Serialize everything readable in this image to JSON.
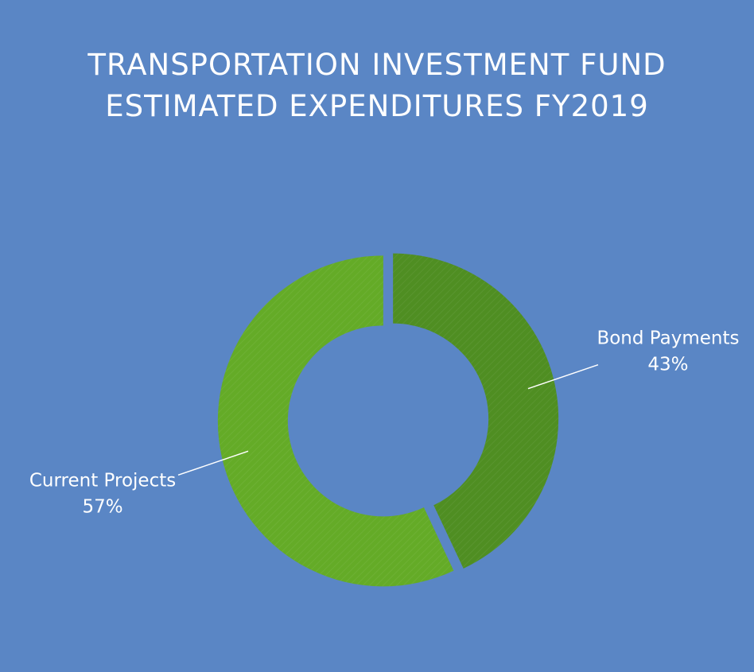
{
  "colors": {
    "background": "#5a86c5",
    "bond_payments": "#4f8e22",
    "current_projects": "#64ab27"
  },
  "chart_data": {
    "type": "pie",
    "title": "TRANSPORTATION INVESTMENT FUND ESTIMATED EXPENDITURES FY2019",
    "title_lines": [
      "TRANSPORTATION INVESTMENT FUND",
      "ESTIMATED EXPENDITURES FY2019"
    ],
    "categories": [
      "Bond Payments",
      "Current Projects"
    ],
    "values": [
      43,
      57
    ],
    "value_labels": [
      "43%",
      "57%"
    ],
    "donut": true
  }
}
